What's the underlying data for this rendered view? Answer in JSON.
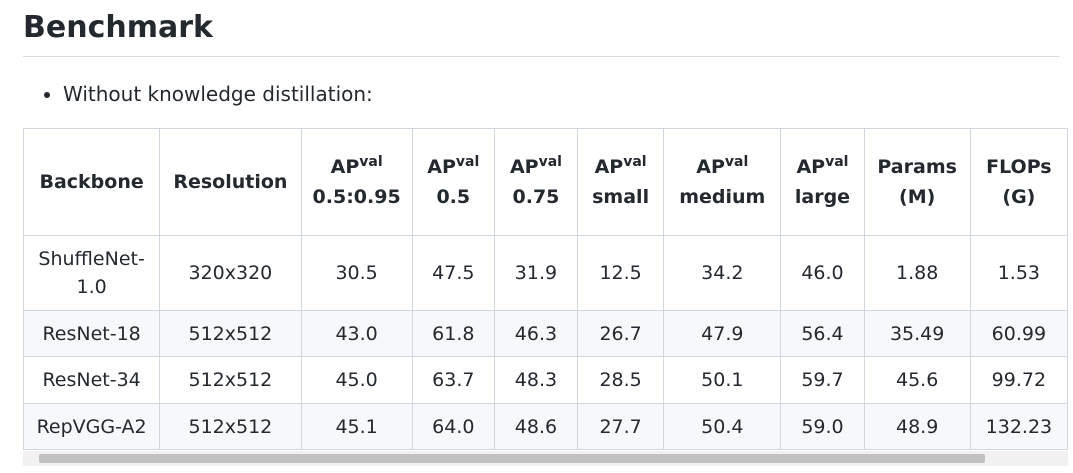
{
  "heading": "Benchmark",
  "bullets": [
    "Without knowledge distillation:"
  ],
  "table": {
    "headers": [
      {
        "text": "Backbone"
      },
      {
        "text": "Resolution"
      },
      {
        "text": "AP",
        "sup": "val",
        "line2": "0.5:0.95"
      },
      {
        "text": "AP",
        "sup": "val",
        "line2": "0.5"
      },
      {
        "text": "AP",
        "sup": "val",
        "line2": "0.75"
      },
      {
        "text": "AP",
        "sup": "val",
        "line2": "small"
      },
      {
        "text": "AP",
        "sup": "val",
        "line2": "medium"
      },
      {
        "text": "AP",
        "sup": "val",
        "line2": "large"
      },
      {
        "text": "Params",
        "line2": "(M)"
      },
      {
        "text": "FLOPs",
        "line2": "(G)"
      }
    ],
    "rows": [
      [
        "ShuffleNet-1.0",
        "320x320",
        "30.5",
        "47.5",
        "31.9",
        "12.5",
        "34.2",
        "46.0",
        "1.88",
        "1.53"
      ],
      [
        "ResNet-18",
        "512x512",
        "43.0",
        "61.8",
        "46.3",
        "26.7",
        "47.9",
        "56.4",
        "35.49",
        "60.99"
      ],
      [
        "ResNet-34",
        "512x512",
        "45.0",
        "63.7",
        "48.3",
        "28.5",
        "50.1",
        "59.7",
        "45.6",
        "99.72"
      ],
      [
        "RepVGG-A2",
        "512x512",
        "45.1",
        "64.0",
        "48.6",
        "27.7",
        "50.4",
        "59.0",
        "48.9",
        "132.23"
      ]
    ]
  }
}
